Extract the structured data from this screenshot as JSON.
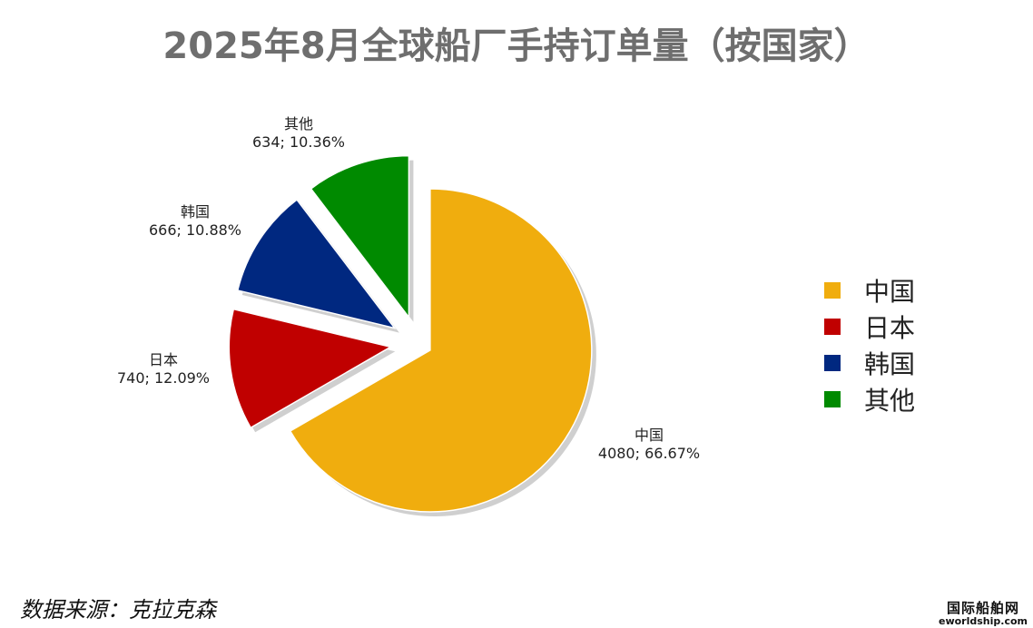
{
  "title": "2025年8月全球船厂手持订单量（按国家）",
  "chart_data": {
    "type": "pie",
    "title": "2025年8月全球船厂手持订单量（按国家）",
    "categories": [
      "中国",
      "日本",
      "韩国",
      "其他"
    ],
    "values": [
      4080,
      740,
      666,
      634
    ],
    "percents": [
      "66.67%",
      "12.09%",
      "10.88%",
      "10.36%"
    ],
    "data_labels": [
      "4080; 66.67%",
      "740; 12.09%",
      "666; 10.88%",
      "634; 10.36%"
    ],
    "colors": [
      "#F0AD0E",
      "#C00000",
      "#002880",
      "#008A00"
    ],
    "legend_position": "right",
    "exploded": true
  },
  "source": "数据来源：克拉克森",
  "watermark": {
    "name": "国际船舶网",
    "url": "eworldship.com"
  }
}
